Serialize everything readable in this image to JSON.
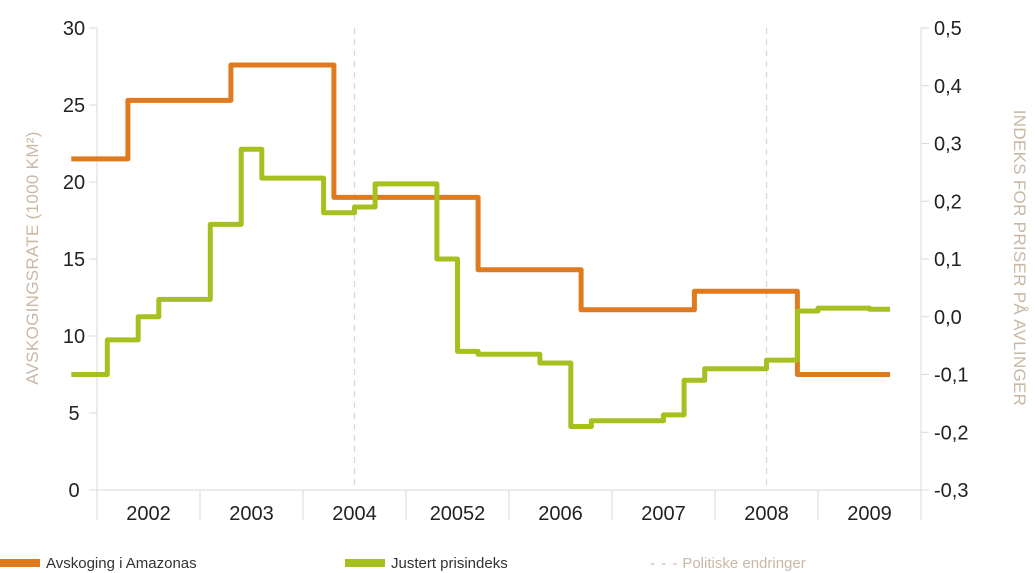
{
  "chart_data": {
    "type": "line",
    "x_categories": [
      "2002",
      "2003",
      "2004",
      "20052",
      "2006",
      "2007",
      "2008",
      "2009"
    ],
    "y_left": {
      "label": "AVSKOGINGSRATE (1000 KM²)",
      "ticks": [
        "0",
        "5",
        "10",
        "15",
        "20",
        "25",
        "30"
      ],
      "range": [
        0,
        30
      ]
    },
    "y_right": {
      "label": "INDEKS FOR PRISER PÅ AVLINGER",
      "ticks": [
        "-0,3",
        "-0,2",
        "-0,1",
        "0,0",
        "0,1",
        "0,2",
        "0,3",
        "0,4",
        "0,5"
      ],
      "range": [
        -0.3,
        0.5
      ]
    },
    "policy_change_x": [
      2004.0,
      2008.0
    ],
    "series": [
      {
        "name": "Avskoging i Amazonas",
        "axis": "left",
        "color": "#e07a1f",
        "x": [
          2001.25,
          2001.8,
          2001.8,
          2002.3,
          2002.3,
          2002.8,
          2002.8,
          2003.2,
          2003.2,
          2003.8,
          2003.8,
          2004.3,
          2004.3,
          2004.8,
          2004.8,
          2005.2,
          2005.2,
          2005.8,
          2005.8,
          2006.2,
          2006.2,
          2006.8,
          2006.8,
          2007.3,
          2007.3,
          2007.8,
          2007.8,
          2008.3,
          2008.3,
          2008.8,
          2008.8,
          2009.2
        ],
        "values": [
          21.5,
          21.5,
          25.3,
          25.3,
          25.3,
          25.3,
          27.6,
          27.6,
          27.6,
          27.6,
          19.0,
          19.0,
          19.0,
          19.0,
          19.0,
          19.0,
          14.3,
          14.3,
          14.3,
          14.3,
          11.7,
          11.7,
          11.7,
          11.7,
          12.9,
          12.9,
          12.9,
          12.9,
          7.5,
          7.5,
          7.5,
          7.5
        ]
      },
      {
        "name": "Justert prisindeks",
        "axis": "right",
        "color": "#a6c11f",
        "x": [
          2001.25,
          2001.6,
          2001.6,
          2001.9,
          2001.9,
          2002.1,
          2002.1,
          2002.3,
          2002.3,
          2002.6,
          2002.6,
          2002.9,
          2002.9,
          2003.1,
          2003.1,
          2003.3,
          2003.3,
          2003.7,
          2003.7,
          2004.0,
          2004.0,
          2004.2,
          2004.2,
          2004.4,
          2004.4,
          2004.8,
          2004.8,
          2005.0,
          2005.0,
          2005.2,
          2005.2,
          2005.4,
          2005.4,
          2005.8,
          2005.8,
          2006.1,
          2006.1,
          2006.3,
          2006.3,
          2006.7,
          2006.7,
          2007.0,
          2007.0,
          2007.2,
          2007.2,
          2007.4,
          2007.4,
          2007.6,
          2007.6,
          2008.0,
          2008.0,
          2008.3,
          2008.3,
          2008.5,
          2008.5,
          2008.7,
          2008.7,
          2009.0,
          2009.0,
          2009.2
        ],
        "values": [
          -0.1,
          -0.1,
          -0.04,
          -0.04,
          0.0,
          0.0,
          0.03,
          0.03,
          0.03,
          0.03,
          0.16,
          0.16,
          0.29,
          0.29,
          0.24,
          0.24,
          0.24,
          0.24,
          0.18,
          0.18,
          0.19,
          0.19,
          0.23,
          0.23,
          0.23,
          0.23,
          0.1,
          0.1,
          -0.06,
          -0.06,
          -0.065,
          -0.065,
          -0.065,
          -0.065,
          -0.08,
          -0.08,
          -0.19,
          -0.19,
          -0.18,
          -0.18,
          -0.18,
          -0.18,
          -0.17,
          -0.17,
          -0.11,
          -0.11,
          -0.09,
          -0.09,
          -0.09,
          -0.09,
          -0.075,
          -0.075,
          0.01,
          0.01,
          0.015,
          0.015,
          0.015,
          0.015,
          0.013,
          0.013
        ]
      }
    ],
    "legend": {
      "deforestation": "Avskoging i Amazonas",
      "price_index": "Justert prisindeks",
      "policy": "Politiske endringer",
      "policy_dash": "- - -"
    }
  }
}
